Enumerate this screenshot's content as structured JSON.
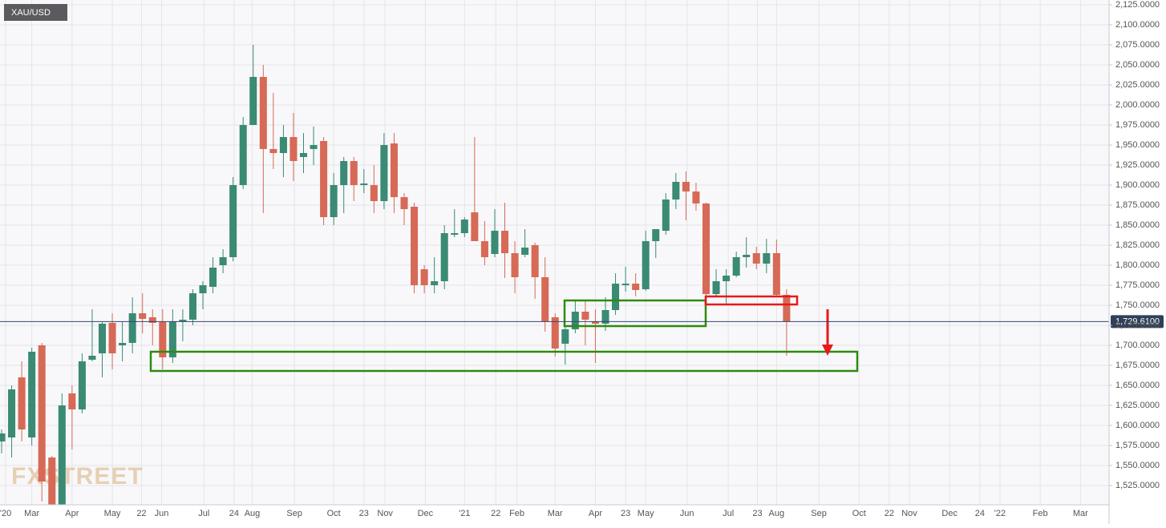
{
  "chart_data": {
    "type": "candlestick",
    "title": "XAU/USD",
    "watermark": "FXSTREET",
    "up_color": "#3a8a74",
    "down_color": "#d66a56",
    "grid": true,
    "x": [
      0,
      1,
      2,
      3,
      4,
      5,
      6,
      7,
      8,
      9,
      10,
      11,
      12,
      13,
      14,
      15,
      16,
      17,
      18,
      19,
      20,
      21,
      22,
      23,
      24,
      25,
      26,
      27,
      28,
      29,
      30,
      31,
      32,
      33,
      34,
      35,
      36,
      37,
      38,
      39,
      40,
      41,
      42,
      43,
      44,
      45,
      46,
      47,
      48,
      49,
      50,
      51,
      52,
      53,
      54,
      55,
      56,
      57,
      58,
      59,
      60,
      61,
      62,
      63,
      64,
      65,
      66,
      67,
      68,
      69,
      70,
      71,
      72,
      73,
      74,
      75,
      76,
      77,
      78
    ],
    "open": [
      1580,
      1585,
      1660,
      1585,
      1700,
      1560,
      1480,
      1640,
      1620,
      1682,
      1690,
      1728,
      1700,
      1703,
      1740,
      1735,
      1730,
      1685,
      1730,
      1732,
      1765,
      1773,
      1800,
      1810,
      1900,
      1975,
      2035,
      1945,
      1940,
      1960,
      1935,
      1945,
      1955,
      1860,
      1900,
      1930,
      1900,
      1900,
      1880,
      1952,
      1885,
      1873,
      1795,
      1775,
      1780,
      1838,
      1840,
      1866,
      1830,
      1814,
      1843,
      1815,
      1813,
      1825,
      1785,
      1735,
      1702,
      1720,
      1742,
      1730,
      1727,
      1744,
      1775,
      1777,
      1770,
      1830,
      1843,
      1882,
      1904,
      1892,
      1877,
      1764,
      1780,
      1787,
      1810,
      1815,
      1802,
      1815,
      1763
    ],
    "high": [
      1595,
      1650,
      1680,
      1697,
      1703,
      1562,
      1640,
      1650,
      1690,
      1745,
      1730,
      1740,
      1730,
      1760,
      1765,
      1745,
      1745,
      1745,
      1745,
      1770,
      1780,
      1810,
      1820,
      1910,
      1985,
      2075,
      2050,
      2015,
      1975,
      1990,
      1965,
      1973,
      1960,
      1915,
      1935,
      1935,
      1920,
      1925,
      1965,
      1965,
      1890,
      1878,
      1800,
      1810,
      1850,
      1870,
      1860,
      1960,
      1855,
      1870,
      1878,
      1830,
      1845,
      1828,
      1810,
      1740,
      1725,
      1755,
      1755,
      1745,
      1760,
      1790,
      1798,
      1790,
      1843,
      1845,
      1890,
      1915,
      1917,
      1903,
      1878,
      1795,
      1795,
      1817,
      1835,
      1823,
      1833,
      1832,
      1770
    ],
    "low": [
      1565,
      1560,
      1580,
      1575,
      1505,
      1450,
      1478,
      1570,
      1615,
      1680,
      1660,
      1670,
      1680,
      1690,
      1715,
      1700,
      1670,
      1678,
      1705,
      1725,
      1745,
      1765,
      1790,
      1805,
      1895,
      1975,
      1865,
      1920,
      1910,
      1905,
      1915,
      1925,
      1850,
      1850,
      1865,
      1880,
      1890,
      1865,
      1870,
      1865,
      1850,
      1765,
      1765,
      1765,
      1770,
      1835,
      1835,
      1830,
      1800,
      1810,
      1784,
      1765,
      1810,
      1758,
      1717,
      1686,
      1676,
      1715,
      1700,
      1678,
      1718,
      1738,
      1767,
      1761,
      1768,
      1809,
      1838,
      1870,
      1856,
      1868,
      1762,
      1761,
      1751,
      1785,
      1797,
      1795,
      1790,
      1762,
      1687
    ],
    "close": [
      1590,
      1645,
      1595,
      1692,
      1530,
      1480,
      1625,
      1620,
      1680,
      1687,
      1727,
      1690,
      1703,
      1740,
      1733,
      1728,
      1685,
      1730,
      1732,
      1765,
      1775,
      1797,
      1810,
      1900,
      1975,
      2035,
      1945,
      1940,
      1960,
      1930,
      1940,
      1950,
      1860,
      1900,
      1930,
      1900,
      1902,
      1880,
      1950,
      1885,
      1870,
      1775,
      1775,
      1780,
      1840,
      1840,
      1857,
      1830,
      1810,
      1843,
      1815,
      1785,
      1822,
      1785,
      1730,
      1696,
      1720,
      1742,
      1732,
      1727,
      1744,
      1777,
      1777,
      1769,
      1830,
      1845,
      1882,
      1904,
      1892,
      1877,
      1764,
      1780,
      1787,
      1810,
      1813,
      1802,
      1815,
      1763,
      1729.61
    ],
    "xlim": [
      -0.16,
      110.04
    ],
    "xticks": [
      {
        "value": 0.4,
        "label": "'20"
      },
      {
        "value": 3.0,
        "label": "Mar"
      },
      {
        "value": 7.0,
        "label": "Apr"
      },
      {
        "value": 11.0,
        "label": "May"
      },
      {
        "value": 13.9,
        "label": "22"
      },
      {
        "value": 15.9,
        "label": "Jun"
      },
      {
        "value": 20.1,
        "label": "Jul"
      },
      {
        "value": 23.1,
        "label": "24"
      },
      {
        "value": 24.9,
        "label": "Aug"
      },
      {
        "value": 29.1,
        "label": "Sep"
      },
      {
        "value": 33.0,
        "label": "Oct"
      },
      {
        "value": 36.0,
        "label": "23"
      },
      {
        "value": 38.1,
        "label": "Nov"
      },
      {
        "value": 42.1,
        "label": "Dec"
      },
      {
        "value": 46.0,
        "label": "'21"
      },
      {
        "value": 49.1,
        "label": "22"
      },
      {
        "value": 51.2,
        "label": "Feb"
      },
      {
        "value": 55.0,
        "label": "Mar"
      },
      {
        "value": 59.0,
        "label": "Apr"
      },
      {
        "value": 62.0,
        "label": "23"
      },
      {
        "value": 64.0,
        "label": "May"
      },
      {
        "value": 68.1,
        "label": "Jun"
      },
      {
        "value": 72.2,
        "label": "Jul"
      },
      {
        "value": 75.1,
        "label": "23"
      },
      {
        "value": 77.0,
        "label": "Aug"
      },
      {
        "value": 81.2,
        "label": "Sep"
      },
      {
        "value": 85.2,
        "label": "Oct"
      },
      {
        "value": 88.2,
        "label": "22"
      },
      {
        "value": 90.2,
        "label": "Nov"
      },
      {
        "value": 94.2,
        "label": "Dec"
      },
      {
        "value": 97.2,
        "label": "24"
      },
      {
        "value": 99.2,
        "label": "'22"
      },
      {
        "value": 103.2,
        "label": "Feb"
      },
      {
        "value": 107.2,
        "label": "Mar"
      }
    ],
    "ylim": [
      1501,
      2131
    ],
    "yticks": [
      {
        "value": 2125,
        "label": "2,125.0000"
      },
      {
        "value": 2100,
        "label": "2,100.0000"
      },
      {
        "value": 2075,
        "label": "2,075.0000"
      },
      {
        "value": 2050,
        "label": "2,050.0000"
      },
      {
        "value": 2025,
        "label": "2,025.0000"
      },
      {
        "value": 2000,
        "label": "2,000.0000"
      },
      {
        "value": 1975,
        "label": "1,975.0000"
      },
      {
        "value": 1950,
        "label": "1,950.0000"
      },
      {
        "value": 1925,
        "label": "1,925.0000"
      },
      {
        "value": 1900,
        "label": "1,900.0000"
      },
      {
        "value": 1875,
        "label": "1,875.0000"
      },
      {
        "value": 1850,
        "label": "1,850.0000"
      },
      {
        "value": 1825,
        "label": "1,825.0000"
      },
      {
        "value": 1800,
        "label": "1,800.0000"
      },
      {
        "value": 1775,
        "label": "1,775.0000"
      },
      {
        "value": 1750,
        "label": "1,750.0000"
      },
      {
        "value": 1725,
        "label": "1,725.0000"
      },
      {
        "value": 1700,
        "label": "1,700.0000"
      },
      {
        "value": 1675,
        "label": "1,675.0000"
      },
      {
        "value": 1650,
        "label": "1,650.0000"
      },
      {
        "value": 1625,
        "label": "1,625.0000"
      },
      {
        "value": 1600,
        "label": "1,600.0000"
      },
      {
        "value": 1575,
        "label": "1,575.0000"
      },
      {
        "value": 1550,
        "label": "1,550.0000"
      },
      {
        "value": 1525,
        "label": "1,525.0000"
      }
    ],
    "last_price": {
      "value": 1729.61,
      "label": "1,729.6100"
    }
  }
}
